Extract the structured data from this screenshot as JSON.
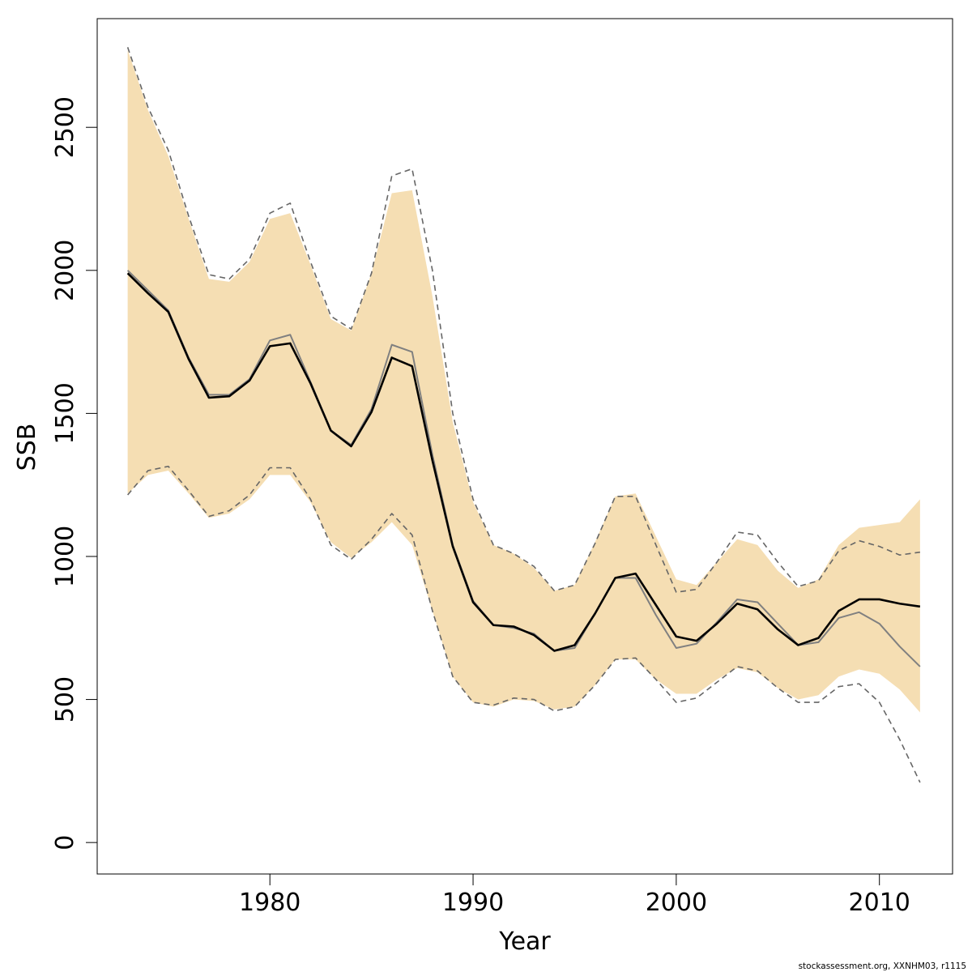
{
  "chart_data": {
    "type": "line",
    "xlabel": "Year",
    "ylabel": "SSB",
    "xlim": [
      1971.5,
      2013.6
    ],
    "ylim": [
      -110,
      2880
    ],
    "x_ticks": [
      1980,
      1990,
      2000,
      2010
    ],
    "x_tick_labels": [
      "1980",
      "1990",
      "2000",
      "2010"
    ],
    "y_ticks": [
      0,
      500,
      1000,
      1500,
      2000,
      2500
    ],
    "y_tick_labels": [
      "0",
      "500",
      "1000",
      "1500",
      "2000",
      "2500"
    ],
    "grid": false,
    "legend": "none",
    "colors": {
      "band": "#f5deb3",
      "estimate": "#000000",
      "previous_estimate": "#808080",
      "previous_bounds": "#666666"
    },
    "x": [
      1973,
      1974,
      1975,
      1976,
      1977,
      1978,
      1979,
      1980,
      1981,
      1982,
      1983,
      1984,
      1985,
      1986,
      1987,
      1988,
      1989,
      1990,
      1991,
      1992,
      1993,
      1994,
      1995,
      1996,
      1997,
      1998,
      1999,
      2000,
      2001,
      2002,
      2003,
      2004,
      2005,
      2006,
      2007,
      2008,
      2009,
      2010,
      2011,
      2012
    ],
    "band": {
      "upper": [
        2770,
        2560,
        2400,
        2180,
        1970,
        1960,
        2030,
        2180,
        2200,
        2020,
        1830,
        1790,
        1990,
        2270,
        2280,
        1910,
        1470,
        1190,
        1040,
        1010,
        960,
        880,
        900,
        1050,
        1210,
        1220,
        1070,
        920,
        900,
        980,
        1060,
        1040,
        950,
        890,
        920,
        1040,
        1100,
        1110,
        1120,
        1200
      ],
      "lower": [
        1220,
        1285,
        1300,
        1220,
        1135,
        1150,
        1200,
        1285,
        1285,
        1190,
        1050,
        995,
        1050,
        1120,
        1040,
        810,
        580,
        490,
        475,
        500,
        495,
        465,
        475,
        550,
        640,
        640,
        570,
        520,
        520,
        570,
        610,
        595,
        540,
        500,
        515,
        580,
        605,
        590,
        535,
        455
      ]
    },
    "series": [
      {
        "role": "estimate",
        "values": [
          1990,
          1920,
          1855,
          1690,
          1555,
          1560,
          1615,
          1735,
          1745,
          1605,
          1440,
          1385,
          1505,
          1695,
          1665,
          1335,
          1035,
          840,
          760,
          755,
          725,
          670,
          690,
          800,
          925,
          940,
          830,
          720,
          705,
          765,
          835,
          815,
          745,
          690,
          715,
          810,
          850,
          850,
          835,
          825
        ]
      },
      {
        "role": "previous_estimate",
        "values": [
          2000,
          1930,
          1860,
          1695,
          1565,
          1565,
          1620,
          1755,
          1775,
          1610,
          1440,
          1390,
          1515,
          1740,
          1715,
          1355,
          1040,
          845,
          760,
          750,
          730,
          670,
          680,
          800,
          925,
          925,
          795,
          680,
          695,
          770,
          850,
          840,
          765,
          690,
          700,
          785,
          805,
          765,
          685,
          615
        ]
      },
      {
        "role": "previous_upper",
        "values": [
          2780,
          2570,
          2420,
          2190,
          1985,
          1970,
          2040,
          2200,
          2235,
          2030,
          1840,
          1795,
          1990,
          2330,
          2355,
          2000,
          1500,
          1200,
          1040,
          1010,
          965,
          880,
          900,
          1045,
          1210,
          1210,
          1040,
          875,
          885,
          980,
          1085,
          1075,
          980,
          895,
          915,
          1020,
          1055,
          1035,
          1005,
          1015
        ]
      },
      {
        "role": "previous_lower",
        "values": [
          1215,
          1300,
          1315,
          1230,
          1140,
          1160,
          1215,
          1310,
          1310,
          1200,
          1040,
          990,
          1060,
          1150,
          1075,
          810,
          580,
          490,
          480,
          505,
          500,
          460,
          475,
          550,
          640,
          645,
          570,
          490,
          505,
          560,
          615,
          600,
          540,
          490,
          490,
          545,
          555,
          490,
          360,
          210
        ]
      }
    ],
    "caption": "stockassessment.org, XXNHM03, r1115"
  }
}
